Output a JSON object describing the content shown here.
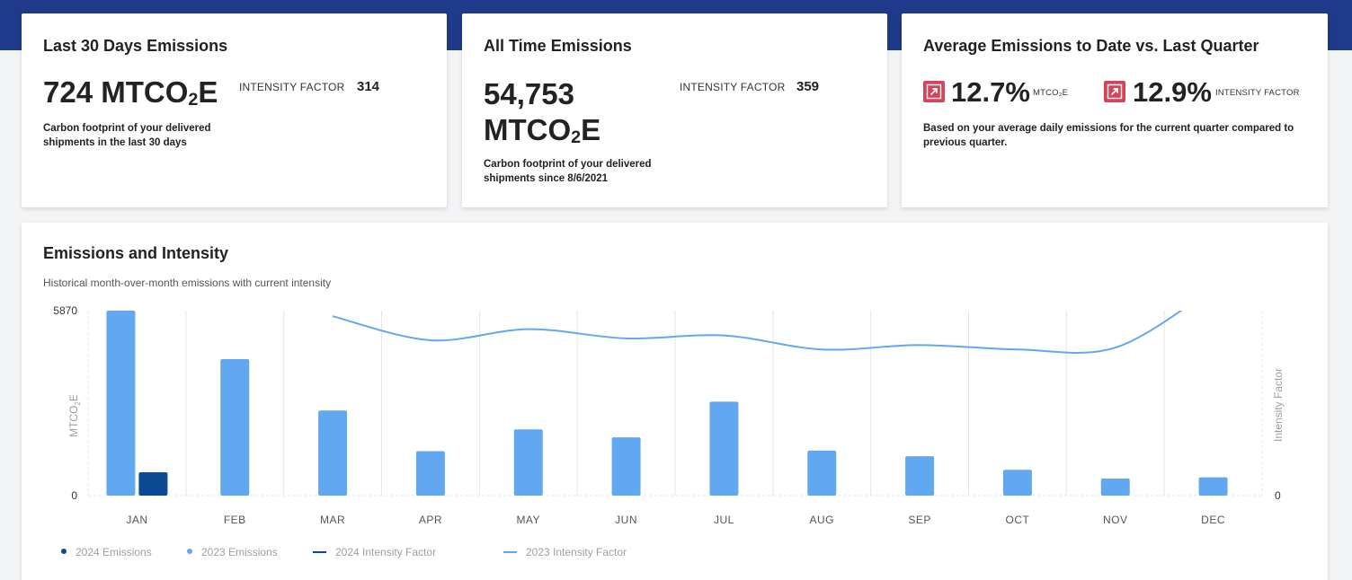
{
  "cards": {
    "last30": {
      "title": "Last 30 Days Emissions",
      "value_main": "724 MTCO",
      "value_sub": "2",
      "value_tail": "E",
      "factor_label": "INTENSITY FACTOR",
      "factor_value": "314",
      "desc_line1": "Carbon footprint of your delivered",
      "desc_line2": "shipments in the last 30 days"
    },
    "alltime": {
      "title": "All Time Emissions",
      "value_line1": "54,753",
      "value_main": "MTCO",
      "value_sub": "2",
      "value_tail": "E",
      "factor_label": "INTENSITY FACTOR",
      "factor_value": "359",
      "desc_line1": "Carbon footprint of your delivered",
      "desc_line2": "shipments since 8/6/2021"
    },
    "average": {
      "title": "Average Emissions to Date vs. Last Quarter",
      "pct1": "12.7%",
      "unit1": "MTCO₂E",
      "pct2": "12.9%",
      "unit2": "INTENSITY FACTOR",
      "desc_line1": "Based on your average daily emissions for the current quarter compared to",
      "desc_line2": "previous quarter.",
      "indicator_color": "#d8435c"
    }
  },
  "chart": {
    "title": "Emissions and Intensity",
    "subtitle": "Historical month-over-month emissions with current intensity"
  },
  "chart_data": {
    "type": "bar",
    "categories": [
      "JAN",
      "FEB",
      "MAR",
      "APR",
      "MAY",
      "JUN",
      "JUL",
      "AUG",
      "SEP",
      "OCT",
      "NOV",
      "DEC"
    ],
    "ylabel_main": "MTCO",
    "ylabel_sub": "2",
    "ylabel_tail": "E",
    "y2label": "Intensity Factor",
    "ylim": [
      0,
      5870
    ],
    "ytick_labels": [
      "5870",
      "0"
    ],
    "y2tick_labels": [
      "0"
    ],
    "y2lim": [
      0,
      500
    ],
    "grid": true,
    "series": [
      {
        "name": "2024 Emissions",
        "kind": "bar",
        "color": "#0d4a94",
        "values": [
          740,
          null,
          null,
          null,
          null,
          null,
          null,
          null,
          null,
          null,
          null,
          null
        ]
      },
      {
        "name": "2023 Emissions",
        "kind": "bar",
        "color": "#62a8f0",
        "values": [
          5870,
          4330,
          2700,
          1410,
          2100,
          1850,
          2980,
          1430,
          1250,
          820,
          540,
          580
        ]
      },
      {
        "name": "2024 Intensity Factor",
        "kind": "line",
        "color": "#0d4a94",
        "values": [
          null,
          null,
          null,
          null,
          null,
          null,
          null,
          null,
          null,
          null,
          null,
          null
        ]
      },
      {
        "name": "2023 Intensity Factor",
        "kind": "line",
        "color": "#62a8f0",
        "values": [
          null,
          null,
          485,
          420,
          450,
          425,
          433,
          395,
          407,
          395,
          400,
          560
        ]
      }
    ],
    "legend_position": "bottom-left"
  }
}
